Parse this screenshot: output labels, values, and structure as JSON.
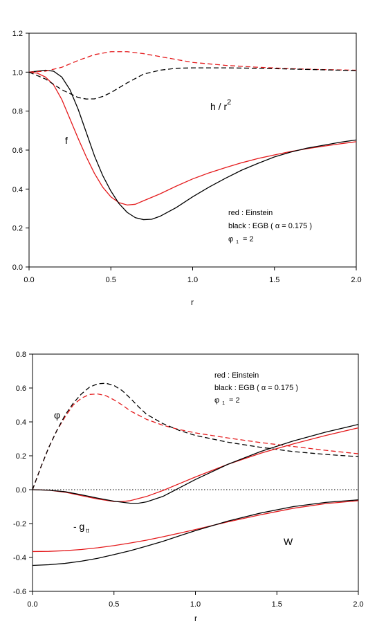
{
  "colors": {
    "einstein": "#e41a1c",
    "egb": "#000000",
    "axis": "#000000"
  },
  "chart_data": [
    {
      "type": "line",
      "xlabel": "r",
      "ylabel": "",
      "xlim": [
        0.0,
        2.0
      ],
      "ylim": [
        0.0,
        1.2
      ],
      "xticks": [
        "0.0",
        "0.5",
        "1.0",
        "1.5",
        "2.0"
      ],
      "yticks": [
        "0.0",
        "0.2",
        "0.4",
        "0.6",
        "0.8",
        "1.0",
        "1.2"
      ],
      "grid": false,
      "annotations": {
        "f_label": "f",
        "h_label": "h / r",
        "h_sup": "2",
        "legend_line1": "red : Einstein",
        "legend_line2": "black : EGB ( α = 0.175 )",
        "legend_phi": "φ",
        "legend_sub": "1",
        "legend_phi_val": "= 2"
      },
      "series": [
        {
          "key": "f_einstein",
          "color": "einstein",
          "dash": false,
          "x": [
            0,
            0.05,
            0.1,
            0.15,
            0.2,
            0.25,
            0.3,
            0.35,
            0.4,
            0.45,
            0.5,
            0.55,
            0.6,
            0.65,
            0.7,
            0.8,
            0.9,
            1.0,
            1.1,
            1.2,
            1.3,
            1.4,
            1.5,
            1.6,
            1.7,
            1.8,
            1.9,
            2.0
          ],
          "y": [
            1.0,
            0.995,
            0.975,
            0.935,
            0.86,
            0.76,
            0.66,
            0.565,
            0.48,
            0.41,
            0.36,
            0.33,
            0.318,
            0.322,
            0.34,
            0.375,
            0.415,
            0.452,
            0.483,
            0.51,
            0.535,
            0.557,
            0.575,
            0.593,
            0.607,
            0.62,
            0.632,
            0.643
          ]
        },
        {
          "key": "f_egb",
          "color": "egb",
          "dash": false,
          "x": [
            0,
            0.05,
            0.1,
            0.15,
            0.2,
            0.25,
            0.3,
            0.35,
            0.4,
            0.45,
            0.5,
            0.55,
            0.6,
            0.65,
            0.7,
            0.75,
            0.8,
            0.9,
            1.0,
            1.1,
            1.2,
            1.3,
            1.4,
            1.5,
            1.6,
            1.7,
            1.8,
            1.9,
            2.0
          ],
          "y": [
            1.0,
            1.005,
            1.01,
            1.005,
            0.975,
            0.91,
            0.81,
            0.69,
            0.57,
            0.47,
            0.39,
            0.325,
            0.28,
            0.253,
            0.243,
            0.245,
            0.26,
            0.305,
            0.36,
            0.41,
            0.455,
            0.497,
            0.532,
            0.565,
            0.59,
            0.61,
            0.625,
            0.64,
            0.652
          ]
        },
        {
          "key": "h_einstein",
          "color": "einstein",
          "dash": true,
          "x": [
            0,
            0.1,
            0.2,
            0.3,
            0.4,
            0.5,
            0.6,
            0.7,
            0.8,
            0.9,
            1.0,
            1.2,
            1.4,
            1.6,
            1.8,
            2.0
          ],
          "y": [
            1.0,
            1.005,
            1.025,
            1.06,
            1.09,
            1.105,
            1.105,
            1.095,
            1.08,
            1.065,
            1.05,
            1.035,
            1.025,
            1.018,
            1.013,
            1.01
          ]
        },
        {
          "key": "h_egb",
          "color": "egb",
          "dash": true,
          "x": [
            0,
            0.1,
            0.2,
            0.3,
            0.35,
            0.4,
            0.45,
            0.5,
            0.6,
            0.7,
            0.8,
            0.9,
            1.0,
            1.2,
            1.4,
            1.6,
            1.8,
            2.0
          ],
          "y": [
            1.0,
            0.965,
            0.91,
            0.87,
            0.862,
            0.863,
            0.875,
            0.895,
            0.945,
            0.99,
            1.01,
            1.02,
            1.022,
            1.022,
            1.02,
            1.016,
            1.012,
            1.008
          ]
        }
      ]
    },
    {
      "type": "line",
      "xlabel": "r",
      "ylabel": "",
      "xlim": [
        0.0,
        2.0
      ],
      "ylim": [
        -0.6,
        0.8
      ],
      "xticks": [
        "0.0",
        "0.5",
        "1.0",
        "1.5",
        "2.0"
      ],
      "yticks": [
        "-0.6",
        "-0.4",
        "-0.2",
        "0.0",
        "0.2",
        "0.4",
        "0.6",
        "0.8"
      ],
      "grid": false,
      "annotations": {
        "phi_label": "φ",
        "gtt_label": "- g",
        "gtt_sub": "tt",
        "w_label": "W",
        "legend_line1": "red : Einstein",
        "legend_line2": "black : EGB ( α = 0.175 )",
        "legend_phi": "φ",
        "legend_sub": "1",
        "legend_phi_val": "= 2"
      },
      "series": [
        {
          "key": "zero_line",
          "color": "egb",
          "dash": "dot",
          "x": [
            0,
            2.0
          ],
          "y": [
            0,
            0
          ]
        },
        {
          "key": "phi_einstein",
          "color": "einstein",
          "dash": true,
          "x": [
            0,
            0.05,
            0.1,
            0.15,
            0.2,
            0.25,
            0.3,
            0.35,
            0.4,
            0.45,
            0.5,
            0.55,
            0.6,
            0.7,
            0.8,
            0.9,
            1.0,
            1.2,
            1.4,
            1.6,
            1.8,
            2.0
          ],
          "y": [
            0.0,
            0.13,
            0.25,
            0.35,
            0.43,
            0.5,
            0.54,
            0.562,
            0.565,
            0.555,
            0.53,
            0.5,
            0.465,
            0.415,
            0.38,
            0.355,
            0.335,
            0.305,
            0.278,
            0.255,
            0.232,
            0.212
          ]
        },
        {
          "key": "phi_egb",
          "color": "egb",
          "dash": true,
          "x": [
            0,
            0.05,
            0.1,
            0.15,
            0.2,
            0.25,
            0.3,
            0.35,
            0.4,
            0.45,
            0.5,
            0.55,
            0.6,
            0.65,
            0.7,
            0.8,
            0.9,
            1.0,
            1.2,
            1.4,
            1.6,
            1.8,
            2.0
          ],
          "y": [
            0.0,
            0.13,
            0.25,
            0.35,
            0.44,
            0.51,
            0.565,
            0.605,
            0.625,
            0.628,
            0.615,
            0.585,
            0.54,
            0.49,
            0.445,
            0.39,
            0.35,
            0.32,
            0.28,
            0.25,
            0.225,
            0.208,
            0.195
          ]
        },
        {
          "key": "gtt_einstein",
          "color": "einstein",
          "dash": false,
          "x": [
            0,
            0.1,
            0.2,
            0.3,
            0.4,
            0.5,
            0.55,
            0.6,
            0.7,
            0.8,
            0.9,
            1.0,
            1.2,
            1.4,
            1.6,
            1.8,
            2.0
          ],
          "y": [
            0.0,
            -0.003,
            -0.015,
            -0.035,
            -0.055,
            -0.07,
            -0.07,
            -0.065,
            -0.04,
            -0.005,
            0.035,
            0.075,
            0.15,
            0.215,
            0.27,
            0.32,
            0.365
          ]
        },
        {
          "key": "gtt_egb",
          "color": "egb",
          "dash": false,
          "x": [
            0,
            0.1,
            0.2,
            0.3,
            0.4,
            0.5,
            0.6,
            0.65,
            0.7,
            0.8,
            0.9,
            1.0,
            1.2,
            1.4,
            1.6,
            1.8,
            2.0
          ],
          "y": [
            0.0,
            -0.003,
            -0.012,
            -0.03,
            -0.05,
            -0.068,
            -0.08,
            -0.08,
            -0.072,
            -0.04,
            0.01,
            0.06,
            0.15,
            0.225,
            0.287,
            0.34,
            0.385
          ]
        },
        {
          "key": "w_einstein",
          "color": "einstein",
          "dash": false,
          "x": [
            0,
            0.1,
            0.2,
            0.3,
            0.4,
            0.5,
            0.6,
            0.7,
            0.8,
            0.9,
            1.0,
            1.2,
            1.4,
            1.6,
            1.8,
            2.0
          ],
          "y": [
            -0.365,
            -0.364,
            -0.36,
            -0.353,
            -0.343,
            -0.33,
            -0.315,
            -0.298,
            -0.278,
            -0.257,
            -0.235,
            -0.19,
            -0.148,
            -0.11,
            -0.082,
            -0.065
          ]
        },
        {
          "key": "w_egb",
          "color": "egb",
          "dash": false,
          "x": [
            0,
            0.1,
            0.2,
            0.3,
            0.4,
            0.5,
            0.6,
            0.7,
            0.8,
            0.9,
            1.0,
            1.2,
            1.4,
            1.6,
            1.8,
            2.0
          ],
          "y": [
            -0.447,
            -0.443,
            -0.435,
            -0.422,
            -0.405,
            -0.383,
            -0.36,
            -0.333,
            -0.305,
            -0.273,
            -0.242,
            -0.185,
            -0.138,
            -0.1,
            -0.075,
            -0.06
          ]
        }
      ]
    }
  ]
}
